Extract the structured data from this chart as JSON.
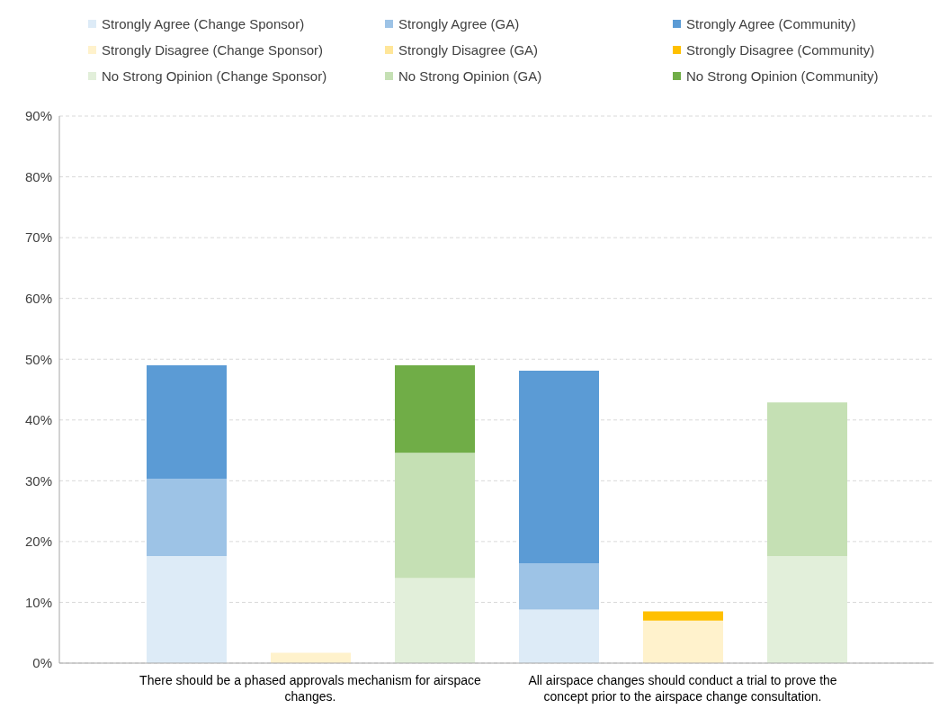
{
  "chart_data": {
    "type": "bar",
    "categories": [
      "There should be a phased approvals mechanism for airspace changes.",
      "All airspace changes should conduct a trial to prove the concept prior to the airspace change consultation."
    ],
    "series": [
      {
        "name": "Strongly Agree (Change Sponsor)",
        "color": "#ddebf7",
        "base": [
          0,
          0
        ],
        "values": [
          17.6,
          8.8
        ]
      },
      {
        "name": "Strongly Agree (GA)",
        "color": "#9dc3e6",
        "base": [
          17.6,
          8.8
        ],
        "values": [
          12.7,
          7.6
        ]
      },
      {
        "name": "Strongly Agree (Community)",
        "color": "#5b9bd5",
        "base": [
          30.3,
          16.4
        ],
        "values": [
          18.7,
          31.7
        ]
      },
      {
        "name": "Strongly Disagree (Change Sponsor)",
        "color": "#fff2cc",
        "base": [
          0,
          0
        ],
        "values": [
          1.7,
          7.0
        ]
      },
      {
        "name": "Strongly Disagree (GA)",
        "color": "#ffe699",
        "base": [
          null,
          null
        ],
        "values": [
          null,
          null
        ]
      },
      {
        "name": "Strongly Disagree (Community)",
        "color": "#ffc000",
        "base": [
          null,
          7.0
        ],
        "values": [
          null,
          1.5
        ]
      },
      {
        "name": "No Strong Opinion (Change Sponsor)",
        "color": "#e2efda",
        "base": [
          0,
          0
        ],
        "values": [
          14.0,
          17.6
        ]
      },
      {
        "name": "No Strong Opinion (GA)",
        "color": "#c5e0b4",
        "base": [
          14.0,
          17.6
        ],
        "values": [
          20.6,
          25.3
        ]
      },
      {
        "name": "No Strong Opinion (Community)",
        "color": "#70ad47",
        "base": [
          34.6,
          null
        ],
        "values": [
          14.4,
          null
        ]
      }
    ],
    "ylim": [
      0,
      90
    ],
    "yticks": [
      {
        "value": 0,
        "label": "0%"
      },
      {
        "value": 10,
        "label": "10%"
      },
      {
        "value": 20,
        "label": "20%"
      },
      {
        "value": 30,
        "label": "30%"
      },
      {
        "value": 40,
        "label": "40%"
      },
      {
        "value": 50,
        "label": "50%"
      },
      {
        "value": 60,
        "label": "60%"
      },
      {
        "value": 70,
        "label": "70%"
      },
      {
        "value": 80,
        "label": "80%"
      },
      {
        "value": 90,
        "label": "90%"
      }
    ],
    "grid": "y",
    "legend": "top"
  }
}
